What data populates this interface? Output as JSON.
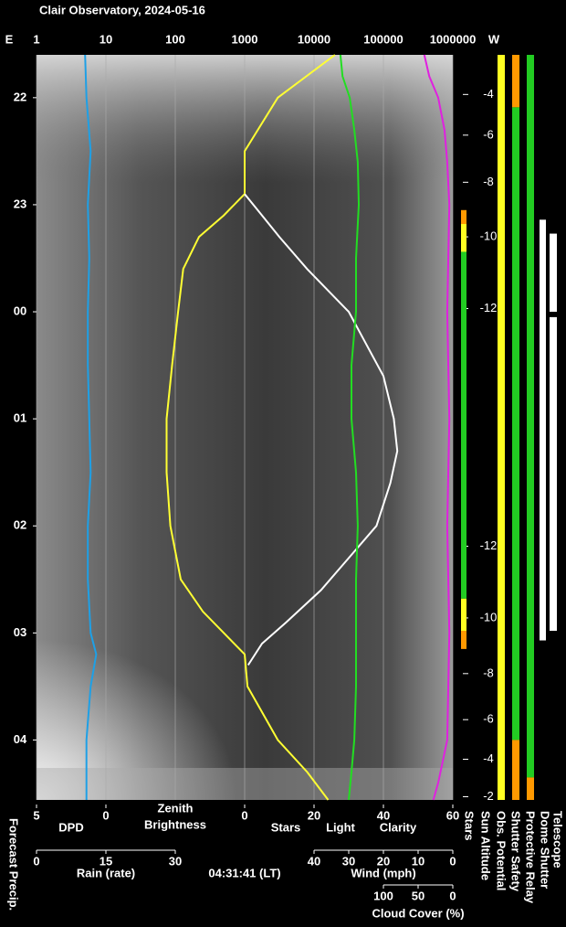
{
  "chart_data": {
    "type": "line",
    "title": "Clair Observatory, 2024-05-16",
    "left_label": "E",
    "right_label": "W",
    "xscale": "log",
    "xlim": [
      1,
      1000000
    ],
    "xticks": [
      1,
      10,
      100,
      1000,
      10000,
      100000,
      1000000
    ],
    "grid": true,
    "ylim": [
      21.6,
      28.56
    ],
    "yticks": [
      22,
      23,
      {
        "value": 24,
        "label": "00"
      },
      {
        "value": 25,
        "label": "01"
      },
      {
        "value": 26,
        "label": "02"
      },
      {
        "value": 27,
        "label": "03"
      },
      {
        "value": 28,
        "label": "04"
      }
    ],
    "top_axis_label": [
      "Zenith",
      "Brightness"
    ],
    "top_axis_label_color": "#ffff33",
    "bottom_axes": [
      {
        "labels": [
          "DPD"
        ],
        "label_colors": [
          "#1e90ff"
        ],
        "lim": [
          5,
          0
        ],
        "ticks": [
          5,
          0
        ]
      },
      {
        "labels": [
          "Stars",
          "Light",
          "Clarity"
        ],
        "label_colors": [
          "#ffffff",
          "#ffff33",
          "#22dd22"
        ],
        "lim": [
          0,
          60
        ],
        "ticks": [
          0,
          20,
          40,
          60
        ]
      },
      {
        "labels": [
          "Rain (rate)"
        ],
        "label_colors": [
          "#40c8e8"
        ],
        "lim": [
          0,
          30
        ],
        "ticks": [
          0,
          15,
          30
        ]
      },
      {
        "labels": [
          "Wind (mph)"
        ],
        "label_colors": [
          "#f4a0b4"
        ],
        "lim": [
          40,
          0
        ],
        "ticks": [
          40,
          30,
          20,
          10,
          0
        ]
      },
      {
        "labels": [
          "Cloud Cover (%)"
        ],
        "label_colors": [
          "#e020e0"
        ],
        "lim": [
          100,
          0
        ],
        "ticks": [
          100,
          50,
          0
        ]
      }
    ],
    "timestamp": "04:31:41 (LT)",
    "forecast_label": "Forecast Precip.",
    "series": [
      {
        "name": "DPD",
        "axis": 0,
        "color": "#1ea0e6",
        "x": [
          21.6,
          22,
          22.5,
          23,
          23.5,
          24,
          24.5,
          25,
          25.5,
          26,
          26.5,
          27,
          27.2,
          27.5,
          28,
          28.56
        ],
        "values": [
          1.5,
          1.4,
          1.1,
          1.3,
          1.2,
          1.3,
          1.3,
          1.2,
          1.1,
          1.3,
          1.3,
          1.1,
          0.7,
          1.1,
          1.4,
          1.4
        ]
      },
      {
        "name": "Zenith Brightness",
        "axis": "x",
        "color": "#ffff33",
        "x": [
          21.6,
          22,
          22.5,
          22.9,
          23.1,
          23.3,
          23.6,
          24,
          24.5,
          25,
          25.5,
          26,
          26.5,
          26.8,
          27,
          27.2,
          27.5,
          28,
          28.3,
          28.56
        ],
        "values": [
          20000,
          3000,
          1000,
          1000,
          500,
          220,
          130,
          110,
          90,
          75,
          75,
          85,
          120,
          250,
          500,
          1000,
          1100,
          3000,
          8000,
          16000
        ]
      },
      {
        "name": "Stars",
        "axis": 1,
        "color": "#ffffff",
        "x": [
          22.9,
          23.1,
          23.3,
          23.6,
          24,
          24.3,
          24.6,
          25,
          25.3,
          25.6,
          26,
          26.3,
          26.6,
          26.9,
          27.1,
          27.3
        ],
        "values": [
          0,
          5,
          10,
          18,
          30,
          35,
          40,
          43,
          44,
          42,
          38,
          30,
          22,
          12,
          5,
          1
        ]
      },
      {
        "name": "Clarity",
        "axis": 1,
        "color": "#22dd22",
        "x": [
          21.6,
          21.8,
          22,
          22.3,
          22.6,
          23,
          23.5,
          24,
          24.5,
          25,
          25.5,
          26,
          26.5,
          27,
          27.5,
          28,
          28.3,
          28.56
        ],
        "values": [
          27.6,
          28.2,
          30.3,
          31.6,
          32.6,
          32.9,
          32.1,
          32.1,
          30.8,
          30.8,
          32.1,
          32.6,
          32.1,
          32.1,
          32.1,
          31.6,
          30.8,
          30.0
        ]
      },
      {
        "name": "Cloud Cover (%)",
        "axis": 4,
        "color": "#e020e0",
        "x": [
          21.6,
          21.8,
          22,
          22.3,
          22.6,
          23,
          24,
          25,
          26,
          27,
          28,
          28.4,
          28.56
        ],
        "values": [
          41,
          34,
          21,
          12,
          8,
          5,
          8,
          5,
          8,
          5,
          8,
          21,
          28
        ]
      }
    ],
    "sun_altitude": {
      "times": [
        21.97,
        22.35,
        22.79,
        23.3,
        23.97,
        26.19,
        26.86,
        27.38,
        27.81,
        28.18,
        28.53
      ],
      "values": [
        -4,
        -6,
        -8,
        -10,
        -12,
        -12,
        -10,
        -8,
        -6,
        -4,
        -2
      ]
    },
    "status": [
      {
        "label": "Stars",
        "segments": [
          {
            "from": 23.05,
            "to": 23.18,
            "color": "#ff9900"
          },
          {
            "from": 23.18,
            "to": 23.44,
            "color": "#ffff22"
          },
          {
            "from": 23.44,
            "to": 26.68,
            "color": "#22cc22"
          },
          {
            "from": 26.68,
            "to": 26.98,
            "color": "#ffff22"
          },
          {
            "from": 26.98,
            "to": 27.15,
            "color": "#ff9900"
          }
        ]
      },
      {
        "label": "Sun Altitude",
        "segments": []
      },
      {
        "label": "Obs. Potential",
        "segments": [
          {
            "from": 21.6,
            "to": 28.56,
            "color": "#ffff22"
          }
        ]
      },
      {
        "label": "Shutter Safety",
        "segments": [
          {
            "from": 21.6,
            "to": 22.09,
            "color": "#ff9900"
          },
          {
            "from": 22.09,
            "to": 28.0,
            "color": "#22cc22"
          },
          {
            "from": 28.0,
            "to": 28.56,
            "color": "#ff9900"
          }
        ]
      },
      {
        "label": "Protective Relay",
        "segments": [
          {
            "from": 21.6,
            "to": 28.35,
            "color": "#22cc22"
          },
          {
            "from": 28.35,
            "to": 28.56,
            "color": "#ff9900"
          }
        ]
      },
      {
        "label": "Dome Shutter",
        "segments": [
          {
            "from": 23.14,
            "to": 27.07,
            "color": "#ffffff"
          }
        ]
      },
      {
        "label": "Telescope",
        "segments": [
          {
            "from": 23.27,
            "to": 24.0,
            "color": "#ffffff"
          },
          {
            "from": 24.05,
            "to": 26.98,
            "color": "#ffffff"
          }
        ]
      }
    ]
  }
}
